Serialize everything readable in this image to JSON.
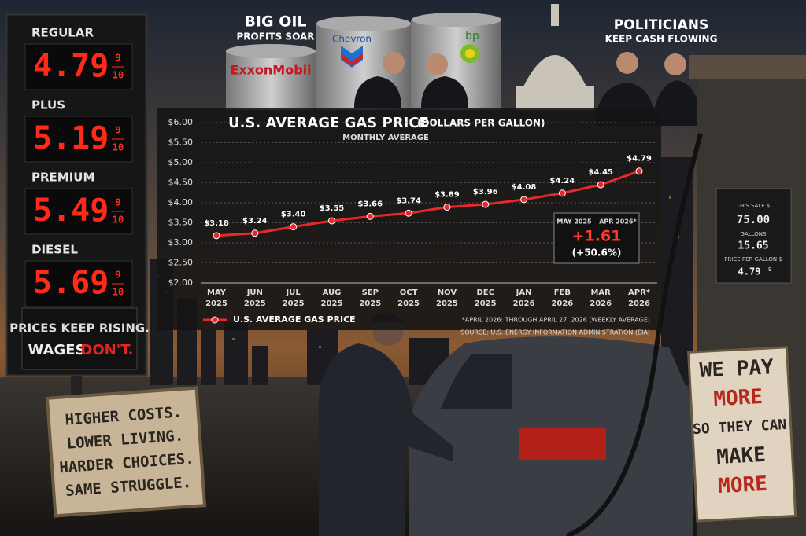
{
  "chart_data": {
    "type": "line",
    "title": "U.S. AVERAGE GAS PRICE",
    "title_units": "(DOLLARS PER GALLON)",
    "subtitle": "MONTHLY AVERAGE",
    "categories": [
      "MAY 2025",
      "JUN 2025",
      "JUL 2025",
      "AUG 2025",
      "SEP 2025",
      "OCT 2025",
      "NOV 2025",
      "DEC 2025",
      "JAN 2026",
      "FEB 2026",
      "MAR 2026",
      "APR* 2026"
    ],
    "series": [
      {
        "name": "U.S. AVERAGE GAS PRICE",
        "color": "#e8282a",
        "values": [
          3.18,
          3.24,
          3.4,
          3.55,
          3.66,
          3.74,
          3.89,
          3.96,
          4.08,
          4.24,
          4.45,
          4.79
        ],
        "value_labels": [
          "$3.18",
          "$3.24",
          "$3.40",
          "$3.55",
          "$3.66",
          "$3.74",
          "$3.89",
          "$3.96",
          "$4.08",
          "$4.24",
          "$4.45",
          "$4.79"
        ]
      }
    ],
    "ylim": [
      2,
      6
    ],
    "yticks": [
      {
        "value": 2,
        "label": "$2.00"
      },
      {
        "value": 2.5,
        "label": "$2.50"
      },
      {
        "value": 3,
        "label": "$3.00"
      },
      {
        "value": 3.5,
        "label": "$3.50"
      },
      {
        "value": 4,
        "label": "$4.00"
      },
      {
        "value": 4.5,
        "label": "$4.50"
      },
      {
        "value": 5,
        "label": "$5.00"
      },
      {
        "value": 5.5,
        "label": "$5.50"
      },
      {
        "value": 6,
        "label": "$6.00"
      }
    ],
    "grid": true,
    "legend": "bottom-left",
    "annotation": {
      "period": "MAY 2025 – APR 2026*",
      "change": "+1.61",
      "percent": "(+50.6%)"
    },
    "notes": [
      "*APRIL 2026: THROUGH APRIL 27, 2026 (WEEKLY AVERAGE)",
      "SOURCE: U.S. ENERGY INFORMATION ADMINISTRATION (EIA)"
    ]
  },
  "board": {
    "grades": [
      {
        "name": "REGULAR",
        "price": "4.79",
        "fraction_top": "9",
        "fraction_bottom": "10"
      },
      {
        "name": "PLUS",
        "price": "5.19",
        "fraction_top": "9",
        "fraction_bottom": "10"
      },
      {
        "name": "PREMIUM",
        "price": "5.49",
        "fraction_top": "9",
        "fraction_bottom": "10"
      },
      {
        "name": "DIESEL",
        "price": "5.69",
        "fraction_top": "9",
        "fraction_bottom": "10"
      }
    ],
    "slogan_line1": "PRICES KEEP RISING.",
    "slogan_line2": "WAGES",
    "slogan_line2_red": "DON'T."
  },
  "headlines": {
    "big_oil": "BIG OIL",
    "big_oil_sub": "PROFITS SOAR",
    "politicians": "POLITICIANS",
    "politicians_sub": "KEEP CASH FLOWING"
  },
  "logos": [
    "ExxonMobil",
    "Chevron",
    "bp"
  ],
  "left_sign": [
    "HIGHER COSTS.",
    "LOWER LIVING.",
    "HARDER CHOICES.",
    "SAME STRUGGLE."
  ],
  "right_sign": [
    "WE PAY",
    "MORE",
    "SO THEY CAN",
    "MAKE",
    "MORE"
  ],
  "pump": {
    "sale_label": "THIS SALE $",
    "sale": "75.00",
    "gallons_label": "GALLONS",
    "gallons": "15.65",
    "ppg_label": "PRICE PER GALLON $",
    "ppg": "4.79",
    "ppg_fraction": "9"
  }
}
